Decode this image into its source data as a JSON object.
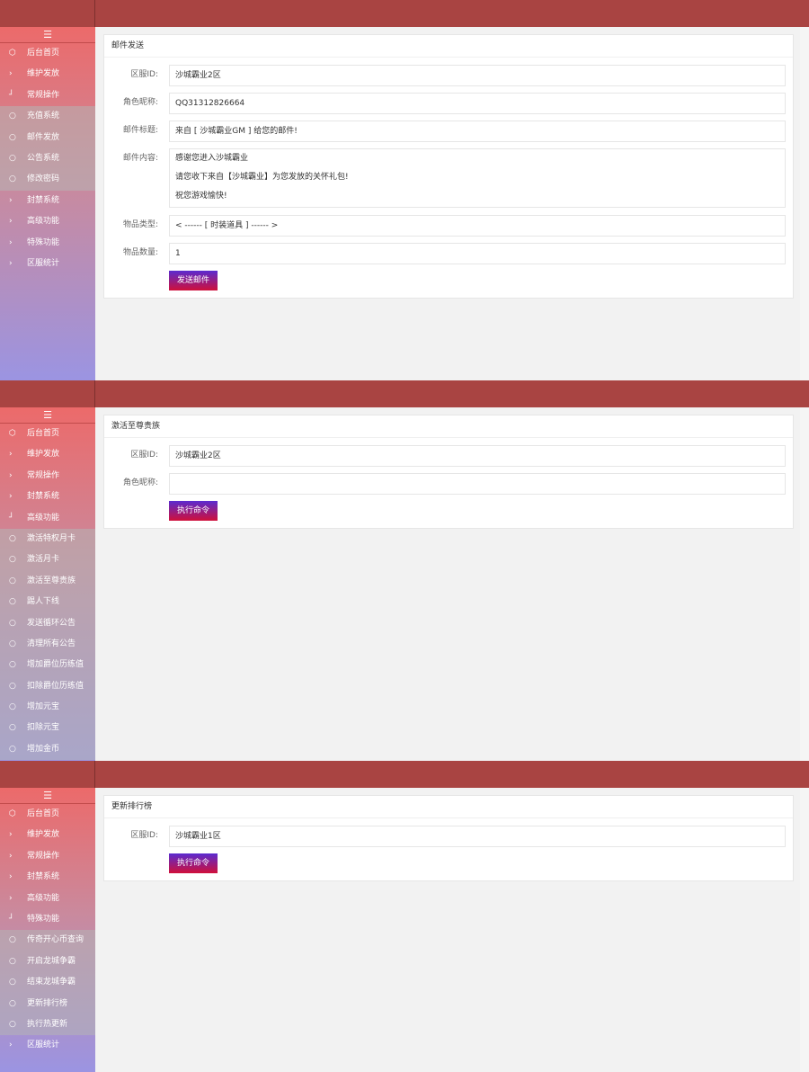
{
  "screens": [
    {
      "menu": [
        {
          "kind": "home",
          "label": "后台首页"
        },
        {
          "kind": "item",
          "label": "维护发放"
        },
        {
          "kind": "open",
          "label": "常规操作"
        },
        {
          "kind": "sub",
          "label": "充值系统"
        },
        {
          "kind": "sub",
          "label": "邮件发放"
        },
        {
          "kind": "sub",
          "label": "公告系统"
        },
        {
          "kind": "sub",
          "label": "修改密码"
        },
        {
          "kind": "item",
          "label": "封禁系统"
        },
        {
          "kind": "item",
          "label": "高级功能"
        },
        {
          "kind": "item",
          "label": "特殊功能"
        },
        {
          "kind": "item",
          "label": "区服统计"
        }
      ],
      "form": {
        "title": "邮件发送",
        "fields": [
          {
            "label": "区服ID:",
            "value": "沙城霸业2区"
          },
          {
            "label": "角色昵称:",
            "value": "QQ31312826664"
          },
          {
            "label": "邮件标题:",
            "value": "来自 [ 沙城霸业GM ] 给您的邮件!"
          },
          {
            "label": "邮件内容:",
            "lines": [
              "感谢您进入沙城霸业",
              "请您收下来自【沙城霸业】为您发放的关怀礼包!",
              "祝您游戏愉快!"
            ]
          },
          {
            "label": "物品类型:",
            "value": "< ------ [ 时装道具 ] ------ >"
          },
          {
            "label": "物品数量:",
            "value": "1"
          }
        ],
        "button": "发送邮件"
      }
    },
    {
      "menu": [
        {
          "kind": "home",
          "label": "后台首页"
        },
        {
          "kind": "item",
          "label": "维护发放"
        },
        {
          "kind": "item",
          "label": "常规操作"
        },
        {
          "kind": "item",
          "label": "封禁系统"
        },
        {
          "kind": "open",
          "label": "高级功能"
        },
        {
          "kind": "sub",
          "label": "激活特权月卡"
        },
        {
          "kind": "sub",
          "label": "激活月卡"
        },
        {
          "kind": "sub",
          "label": "激活至尊贵族"
        },
        {
          "kind": "sub",
          "label": "踢人下线"
        },
        {
          "kind": "sub",
          "label": "发送循环公告"
        },
        {
          "kind": "sub",
          "label": "清理所有公告"
        },
        {
          "kind": "sub",
          "label": "增加爵位历练值"
        },
        {
          "kind": "sub",
          "label": "扣除爵位历练值"
        },
        {
          "kind": "sub",
          "label": "增加元宝"
        },
        {
          "kind": "sub",
          "label": "扣除元宝"
        },
        {
          "kind": "sub",
          "label": "增加金币"
        }
      ],
      "form": {
        "title": "激活至尊贵族",
        "fields": [
          {
            "label": "区服ID:",
            "value": "沙城霸业2区"
          },
          {
            "label": "角色昵称:"
          }
        ],
        "button": "执行命令"
      }
    },
    {
      "menu": [
        {
          "kind": "home",
          "label": "后台首页"
        },
        {
          "kind": "item",
          "label": "维护发放"
        },
        {
          "kind": "item",
          "label": "常规操作"
        },
        {
          "kind": "item",
          "label": "封禁系统"
        },
        {
          "kind": "item",
          "label": "高级功能"
        },
        {
          "kind": "open",
          "label": "特殊功能"
        },
        {
          "kind": "sub",
          "label": "传奇开心币查询"
        },
        {
          "kind": "sub",
          "label": "开启龙城争霸"
        },
        {
          "kind": "sub",
          "label": "结束龙城争霸"
        },
        {
          "kind": "sub",
          "label": "更新排行榜"
        },
        {
          "kind": "sub",
          "label": "执行热更新"
        },
        {
          "kind": "item",
          "label": "区服统计"
        }
      ],
      "form": {
        "title": "更新排行榜",
        "fields": [
          {
            "label": "区服ID:",
            "value": "沙城霸业1区"
          }
        ],
        "button": "执行命令"
      }
    }
  ]
}
